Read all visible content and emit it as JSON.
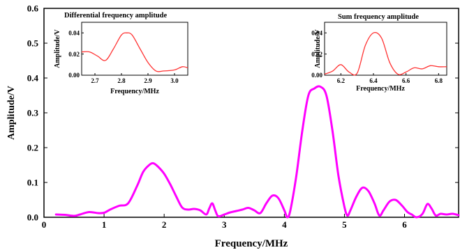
{
  "chart_data": [
    {
      "type": "line",
      "xlabel": "Frequency/MHz",
      "ylabel": "Amplitude/V",
      "xlim": [
        0,
        6.9
      ],
      "ylim": [
        0,
        0.6
      ],
      "xticks": [
        "0",
        "1",
        "2",
        "3",
        "4",
        "5",
        "6"
      ],
      "yticks": [
        "0.0",
        "0.1",
        "0.2",
        "0.3",
        "0.4",
        "0.5",
        "0.6"
      ],
      "grid": false,
      "color": "#ff00ff",
      "series": [
        {
          "x": [
            0.2,
            0.35,
            0.5,
            0.6,
            0.75,
            0.9,
            1.0,
            1.1,
            1.25,
            1.4,
            1.55,
            1.65,
            1.75,
            1.82,
            1.9,
            2.0,
            2.1,
            2.2,
            2.3,
            2.4,
            2.5,
            2.6,
            2.7,
            2.75,
            2.8,
            2.85,
            2.9,
            3.0,
            3.1,
            3.2,
            3.3,
            3.4,
            3.5,
            3.6,
            3.7,
            3.8,
            3.9,
            4.0,
            4.05,
            4.1,
            4.2,
            4.3,
            4.4,
            4.5,
            4.6,
            4.7,
            4.8,
            4.9,
            5.0,
            5.05,
            5.1,
            5.2,
            5.3,
            5.4,
            5.5,
            5.58,
            5.65,
            5.75,
            5.85,
            5.95,
            6.05,
            6.12,
            6.2,
            6.3,
            6.38,
            6.45,
            6.52,
            6.6,
            6.7,
            6.8,
            6.9
          ],
          "y": [
            0.008,
            0.007,
            0.004,
            0.008,
            0.015,
            0.012,
            0.013,
            0.022,
            0.033,
            0.04,
            0.09,
            0.13,
            0.15,
            0.155,
            0.145,
            0.125,
            0.095,
            0.06,
            0.028,
            0.022,
            0.024,
            0.02,
            0.008,
            0.025,
            0.04,
            0.02,
            0.003,
            0.008,
            0.014,
            0.018,
            0.022,
            0.027,
            0.02,
            0.012,
            0.04,
            0.062,
            0.055,
            0.02,
            0.0,
            0.02,
            0.12,
            0.25,
            0.35,
            0.37,
            0.375,
            0.35,
            0.25,
            0.12,
            0.03,
            0.005,
            0.02,
            0.06,
            0.085,
            0.075,
            0.04,
            0.005,
            0.02,
            0.045,
            0.05,
            0.035,
            0.015,
            0.008,
            0.0,
            0.01,
            0.038,
            0.025,
            0.005,
            0.01,
            0.008,
            0.01,
            0.006
          ]
        }
      ]
    },
    {
      "type": "line",
      "title": "Differential frequency amplitude",
      "xlabel": "Frequency/MHz",
      "ylabel": "Amplitude/V",
      "xlim": [
        2.65,
        3.05
      ],
      "ylim": [
        0,
        0.05
      ],
      "xticks": [
        "2.7",
        "2.8",
        "2.9",
        "3.0"
      ],
      "yticks": [
        "0.00",
        "0.02",
        "0.04"
      ],
      "color": "#ff3333",
      "series": [
        {
          "x": [
            2.65,
            2.68,
            2.71,
            2.74,
            2.77,
            2.8,
            2.82,
            2.84,
            2.87,
            2.9,
            2.93,
            2.96,
            3.0,
            3.03,
            3.05
          ],
          "y": [
            0.022,
            0.022,
            0.018,
            0.014,
            0.025,
            0.038,
            0.04,
            0.038,
            0.025,
            0.012,
            0.004,
            0.004,
            0.005,
            0.008,
            0.007
          ]
        }
      ]
    },
    {
      "type": "line",
      "title": "Sum frequency amplitude",
      "xlabel": "Frequency/MHz",
      "ylabel": "Amplitude/V",
      "xlim": [
        6.1,
        6.85
      ],
      "ylim": [
        0,
        0.05
      ],
      "xticks": [
        "6.2",
        "6.4",
        "6.6",
        "6.8"
      ],
      "yticks": [
        "0.00",
        "0.02",
        "0.04"
      ],
      "color": "#ff3333",
      "series": [
        {
          "x": [
            6.1,
            6.15,
            6.2,
            6.25,
            6.3,
            6.35,
            6.4,
            6.45,
            6.5,
            6.55,
            6.6,
            6.65,
            6.7,
            6.75,
            6.8,
            6.85
          ],
          "y": [
            0.001,
            0.004,
            0.01,
            0.003,
            0.002,
            0.028,
            0.04,
            0.035,
            0.012,
            0.001,
            0.003,
            0.007,
            0.006,
            0.009,
            0.008,
            0.008
          ]
        }
      ]
    }
  ]
}
